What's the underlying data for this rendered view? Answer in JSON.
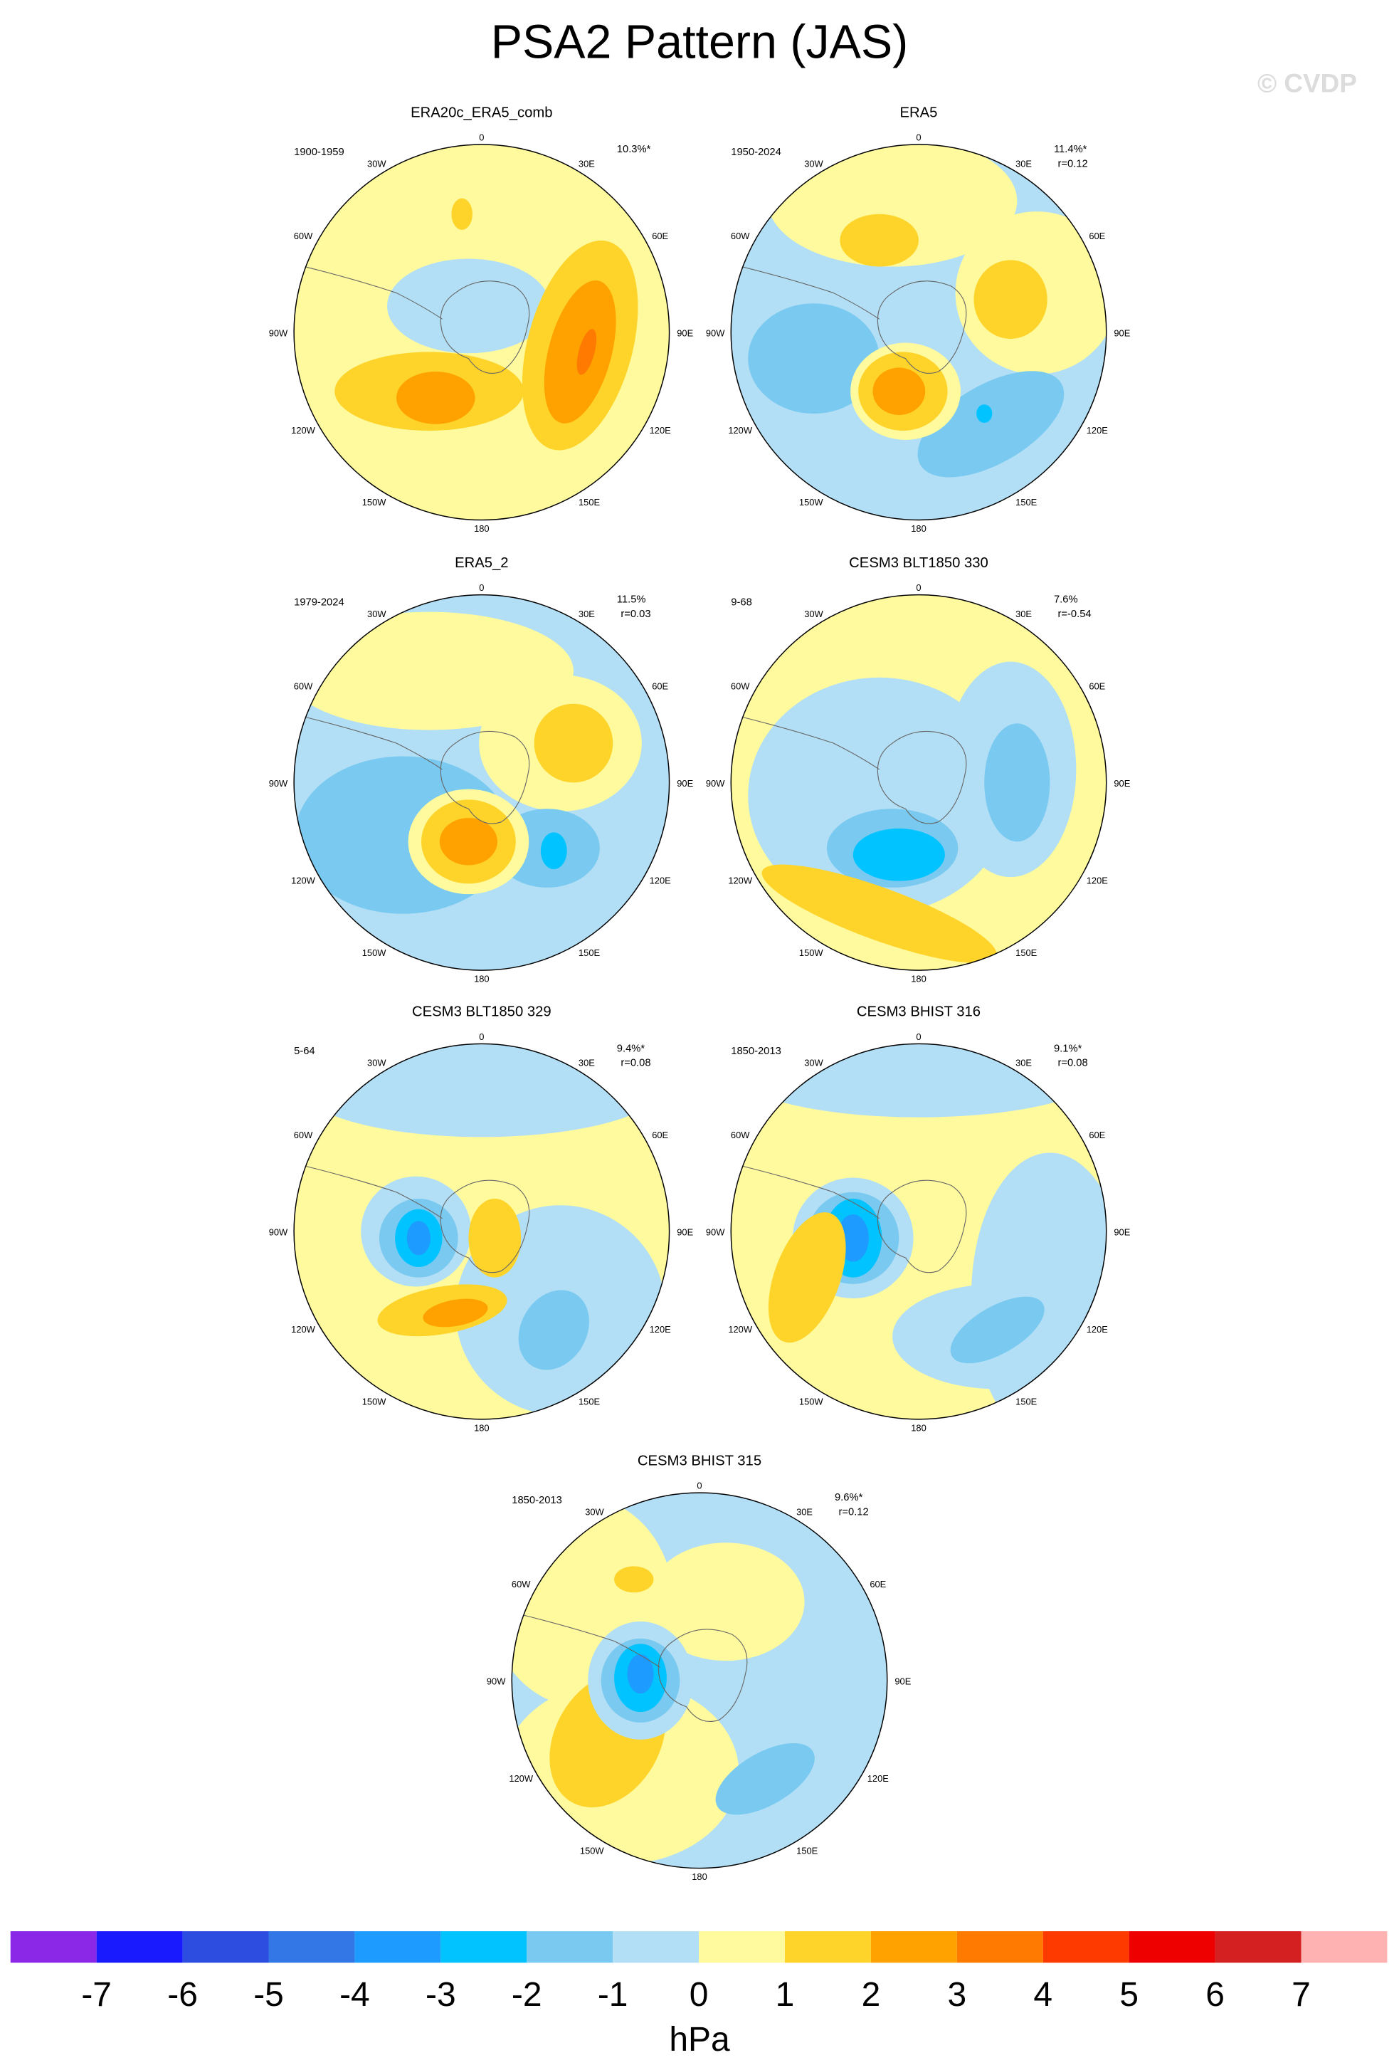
{
  "title": "PSA2 Pattern (JAS)",
  "watermark": "© CVDP",
  "longitude_labels": [
    "0",
    "30E",
    "60E",
    "90E",
    "120E",
    "150E",
    "180",
    "150W",
    "120W",
    "90W",
    "60W",
    "30W"
  ],
  "panels": [
    {
      "title": "ERA20c_ERA5_comb",
      "period": "1900-1959",
      "percent": "10.3%*"
    },
    {
      "title": "ERA5",
      "period": "1950-2024",
      "percent": "11.4%*",
      "r": "r=0.12"
    },
    {
      "title": "ERA5_2",
      "period": "1979-2024",
      "percent": "11.5%",
      "r": "r=0.03"
    },
    {
      "title": "CESM3 BLT1850 330",
      "period": "9-68",
      "percent": "7.6%",
      "r": "r=-0.54"
    },
    {
      "title": "CESM3 BLT1850 329",
      "period": "5-64",
      "percent": "9.4%*",
      "r": "r=0.08"
    },
    {
      "title": "CESM3 BHIST 316",
      "period": "1850-2013",
      "percent": "9.1%*",
      "r": "r=0.08"
    },
    {
      "title": "CESM3 BHIST 315",
      "period": "1850-2013",
      "percent": "9.6%*",
      "r": "r=0.12"
    }
  ],
  "colorbar": {
    "colors": [
      "#8b28e8",
      "#1a1aff",
      "#2c4de0",
      "#3377e6",
      "#1e9bff",
      "#00c3ff",
      "#79c9f0",
      "#b2dff5",
      "#fffa9e",
      "#ffd42a",
      "#ffa200",
      "#ff7a00",
      "#ff3a00",
      "#ee0000",
      "#d42020",
      "#ffb2b2"
    ],
    "ticks": [
      -7,
      -6,
      -5,
      -4,
      -3,
      -2,
      -1,
      0,
      1,
      2,
      3,
      4,
      5,
      6,
      7
    ],
    "label": "hPa"
  }
}
